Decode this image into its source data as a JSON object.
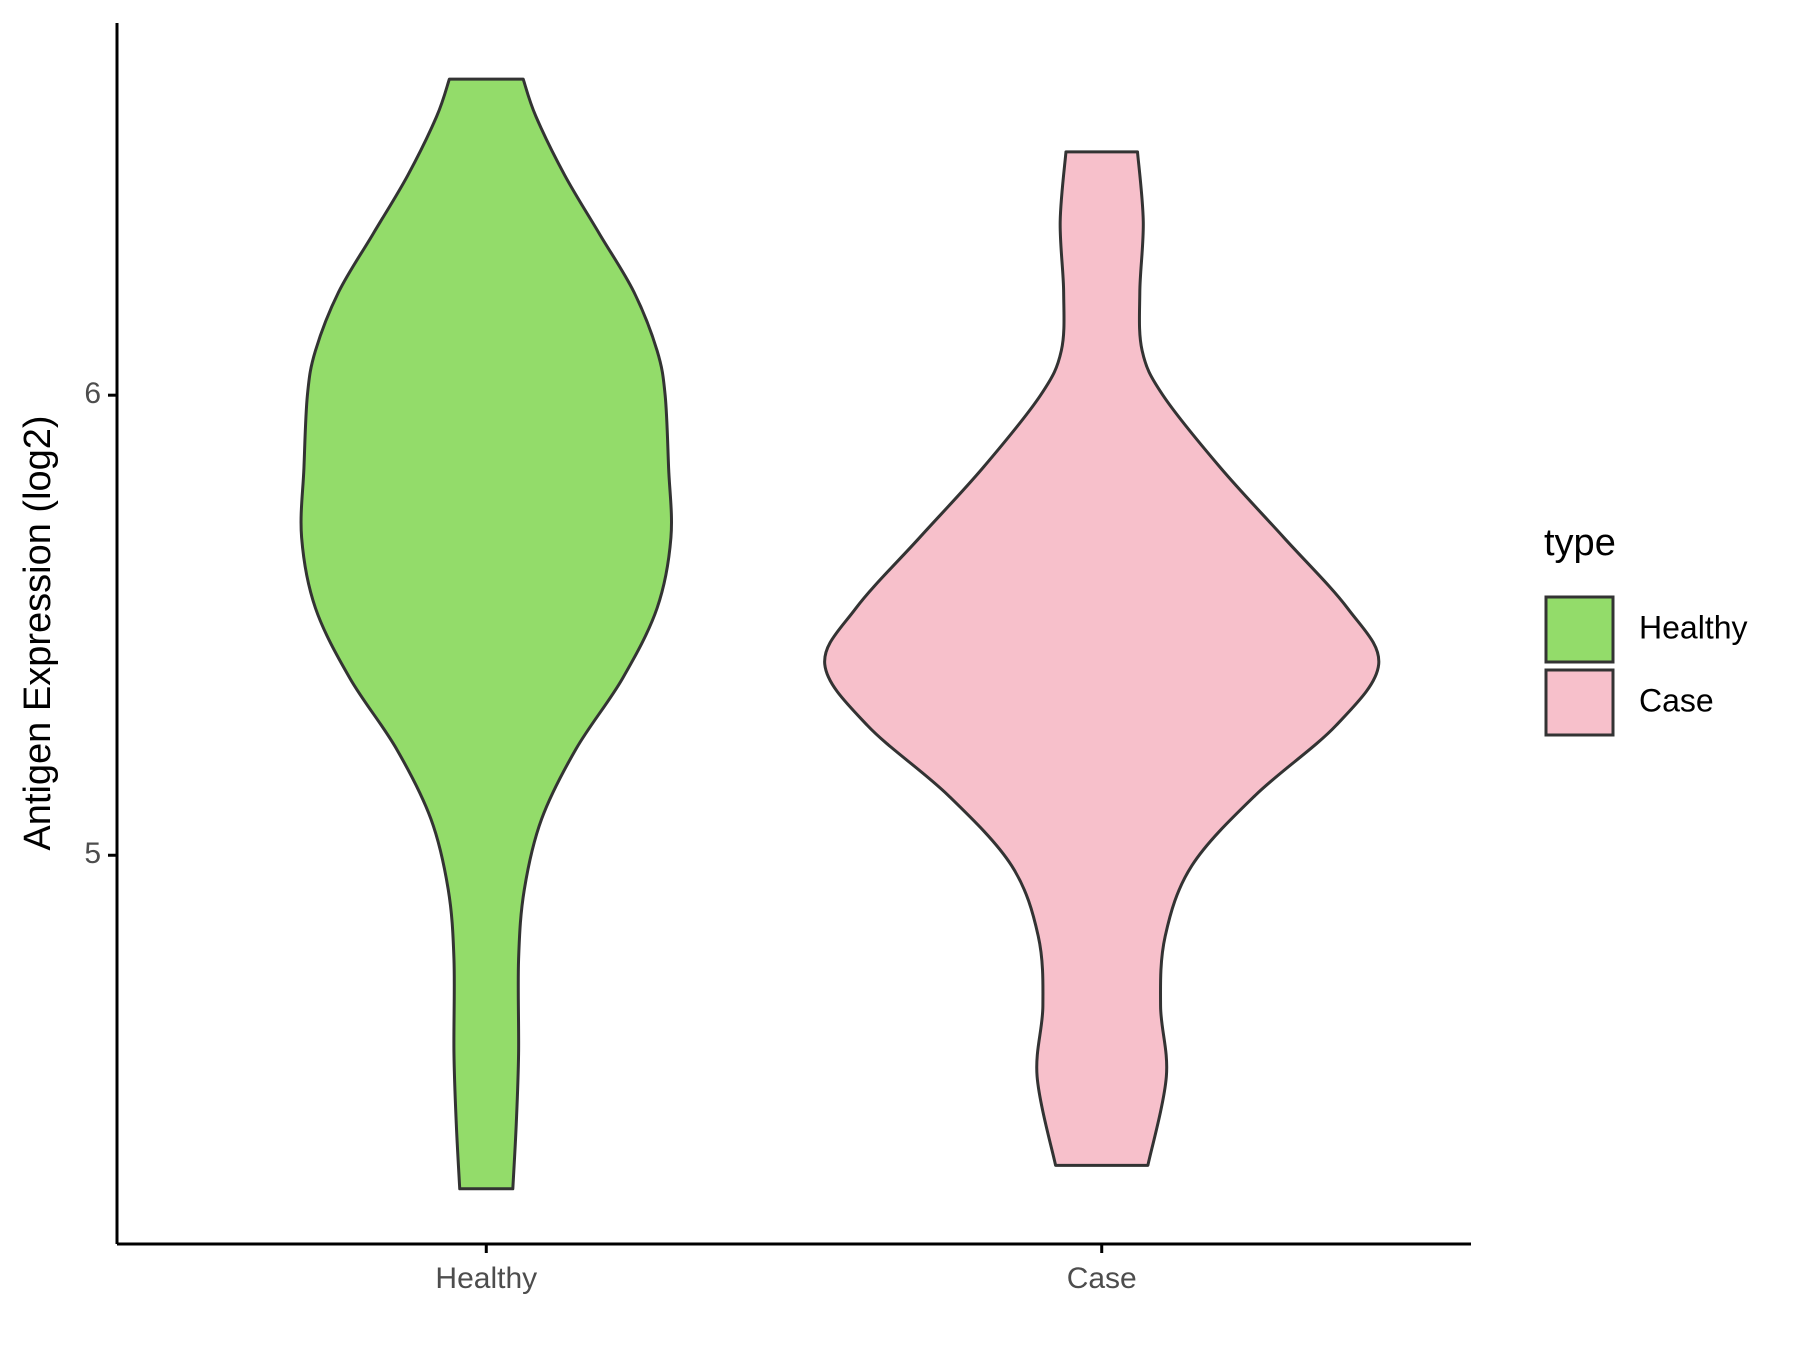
{
  "chart_data": {
    "type": "violin",
    "y_label": "Antigen Expression (log2)",
    "categories": [
      "Healthy",
      "Case"
    ],
    "ylim": [
      4.155,
      6.809
    ],
    "yticks": [
      5,
      6
    ],
    "legend_title": "type",
    "legend_position": "right",
    "series": [
      {
        "name": "Healthy",
        "color": "#93dc6a",
        "y": [
          6.687,
          6.606,
          6.478,
          6.351,
          6.224,
          6.097,
          6.0,
          5.842,
          5.69,
          5.537,
          5.384,
          5.232,
          5.079,
          4.926,
          4.774,
          4.57,
          4.417,
          4.275
        ],
        "density": [
          32,
          43,
          68,
          98,
          128,
          148,
          155,
          158,
          160,
          148,
          118,
          78,
          48,
          33,
          28,
          28,
          26,
          23
        ]
      },
      {
        "name": "Case",
        "color": "#f7c0cb",
        "y": [
          6.529,
          6.377,
          6.224,
          6.097,
          6.0,
          5.842,
          5.69,
          5.537,
          5.415,
          5.282,
          5.13,
          4.977,
          4.824,
          4.672,
          4.519,
          4.326
        ],
        "density": [
          31,
          36,
          33,
          35,
          53,
          103,
          158,
          213,
          240,
          203,
          133,
          78,
          55,
          51,
          56,
          40
        ]
      }
    ]
  }
}
